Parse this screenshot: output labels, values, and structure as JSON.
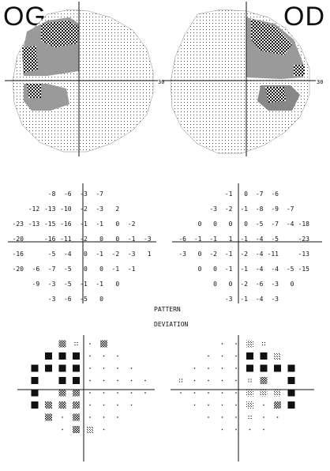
{
  "labels": {
    "left_eye": "OG",
    "right_eye": "OD"
  },
  "fields": {
    "left_axis_end": "30",
    "right_axis_end": "30"
  },
  "captions": {
    "line1": "PATTERN",
    "line2": "DEVIATION"
  },
  "total_deviation": {
    "left": [
      [
        "",
        "",
        "-8",
        "-6",
        "-3",
        "-7",
        "",
        "",
        ""
      ],
      [
        "",
        "-12",
        "-13",
        "-10",
        "-2",
        "-3",
        "2",
        "",
        ""
      ],
      [
        "-23",
        "-13",
        "-15",
        "-16",
        "-1",
        "-1",
        "0",
        "-2",
        ""
      ],
      [
        "-20",
        "",
        "-16",
        "-11",
        "-2",
        "0",
        "0",
        "-1",
        "-3"
      ],
      [
        "-16",
        "",
        "-5",
        "-4",
        "0",
        "-1",
        "-2",
        "-3",
        "1"
      ],
      [
        "-20",
        "-6",
        "-7",
        "-5",
        "0",
        "0",
        "-1",
        "-1",
        ""
      ],
      [
        "",
        "-9",
        "-3",
        "-5",
        "-1",
        "-1",
        "0",
        "",
        ""
      ],
      [
        "",
        "",
        "-3",
        "-6",
        "-5",
        "0",
        "",
        "",
        ""
      ]
    ],
    "right": [
      [
        "",
        "",
        "",
        "-1",
        "0",
        "-7",
        "-6",
        "",
        ""
      ],
      [
        "",
        "",
        "-3",
        "-2",
        "-1",
        "-8",
        "-9",
        "-7",
        ""
      ],
      [
        "",
        "0",
        "0",
        "0",
        "0",
        "-5",
        "-7",
        "-4",
        "-18"
      ],
      [
        "-6",
        "-1",
        "-1",
        "1",
        "-1",
        "-4",
        "-5",
        "",
        "-23"
      ],
      [
        "-3",
        "0",
        "-2",
        "-1",
        "-2",
        "-4",
        "-11",
        "",
        "-13"
      ],
      [
        "",
        "0",
        "0",
        "-1",
        "-1",
        "-4",
        "-4",
        "-5",
        "-15"
      ],
      [
        "",
        "",
        "0",
        "0",
        "-2",
        "-6",
        "-3",
        "0",
        ""
      ],
      [
        "",
        "",
        "",
        "-3",
        "-1",
        "-4",
        "-3",
        "",
        ""
      ]
    ]
  },
  "pattern_deviation": {
    "left": [
      [
        "",
        "",
        "chk",
        "dot4",
        "dot",
        "chk",
        "",
        "",
        ""
      ],
      [
        "",
        "blk",
        "blk",
        "blk",
        "dot",
        "dot",
        "dot",
        "",
        ""
      ],
      [
        "blk",
        "blk",
        "blk",
        "blk",
        "dot",
        "dot",
        "dot",
        "dot",
        ""
      ],
      [
        "blk",
        "",
        "blk",
        "blk",
        "dot",
        "dot",
        "dot",
        "dot",
        "dot"
      ],
      [
        "blk",
        "",
        "chk",
        "chk",
        "dot",
        "dot",
        "dot",
        "dot",
        "dot"
      ],
      [
        "blk",
        "chk",
        "chk",
        "chk",
        "dot",
        "dot",
        "dot",
        "dot",
        ""
      ],
      [
        "",
        "chk",
        "dot",
        "chk",
        "dot",
        "dot",
        "dot",
        "",
        ""
      ],
      [
        "",
        "",
        "dot",
        "chk",
        "lt",
        "dot",
        "",
        "",
        ""
      ]
    ],
    "right": [
      [
        "",
        "",
        "",
        "dot",
        "dot",
        "lt",
        "dot4",
        "",
        ""
      ],
      [
        "",
        "",
        "dot",
        "dot",
        "dot",
        "blk",
        "blk",
        "lt",
        ""
      ],
      [
        "",
        "dot",
        "dot",
        "dot",
        "dot",
        "blk",
        "blk",
        "blk",
        "blk"
      ],
      [
        "dot4",
        "dot",
        "dot",
        "dot",
        "dot",
        "dot4",
        "chk",
        "",
        "blk"
      ],
      [
        "dot",
        "dot",
        "dot",
        "dot",
        "dot",
        "lt",
        "lt",
        "lt",
        "blk"
      ],
      [
        "",
        "dot",
        "dot",
        "dot",
        "dot",
        "lt",
        "dot",
        "chk",
        "blk"
      ],
      [
        "",
        "",
        "dot",
        "dot",
        "dot",
        "dot4",
        "dot",
        "dot",
        ""
      ],
      [
        "",
        "",
        "",
        "dot",
        "dot",
        "dot",
        "dot",
        "",
        ""
      ]
    ]
  }
}
